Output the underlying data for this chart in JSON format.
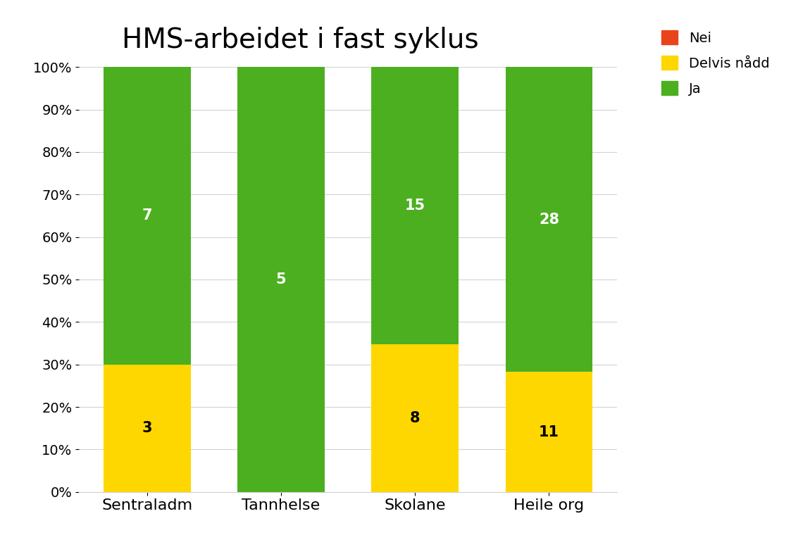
{
  "title": "HMS-arbeidet i fast syklus",
  "categories": [
    "Sentraladm",
    "Tannhelse",
    "Skolane",
    "Heile org"
  ],
  "nei_values": [
    0,
    0,
    0,
    0
  ],
  "delvis_values": [
    3,
    0,
    8,
    11
  ],
  "ja_values": [
    7,
    5,
    15,
    28
  ],
  "nei_pct": [
    0,
    0,
    0,
    0
  ],
  "delvis_pct": [
    0.3,
    0,
    0.3478,
    0.2821
  ],
  "ja_pct": [
    0.7,
    1.0,
    0.6522,
    0.7179
  ],
  "nei_color": "#E8431A",
  "delvis_color": "#FFD700",
  "ja_color": "#4CAF20",
  "legend_labels": [
    "Nei",
    "Delvis nådd",
    "Ja"
  ],
  "title_fontsize": 28,
  "label_fontsize": 15,
  "tick_fontsize": 14,
  "legend_fontsize": 14,
  "background_color": "#FFFFFF",
  "bar_width": 0.65,
  "ytick_labels": [
    "0%",
    "10%",
    "20%",
    "30%",
    "40%",
    "50%",
    "60%",
    "70%",
    "80%",
    "90%",
    "100%"
  ]
}
